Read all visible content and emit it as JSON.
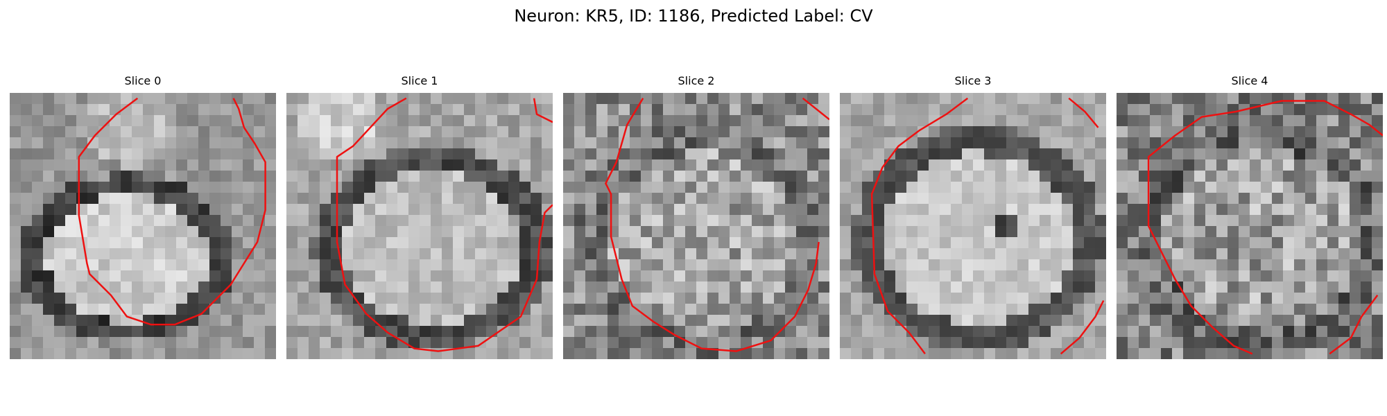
{
  "figure": {
    "title": "Neuron: KR5, ID: 1186, Predicted Label: CV"
  },
  "colors": {
    "contour": "#ee1111",
    "background": "#ffffff"
  },
  "panels": [
    {
      "title": "Slice 0"
    },
    {
      "title": "Slice 1"
    },
    {
      "title": "Slice 2"
    },
    {
      "title": "Slice 3"
    },
    {
      "title": "Slice 4"
    }
  ]
}
